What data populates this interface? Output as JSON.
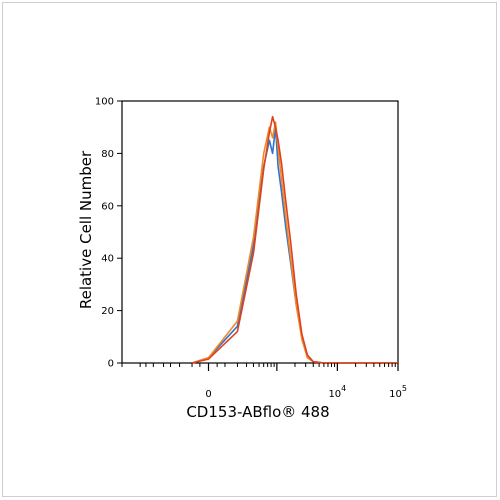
{
  "chart_data": {
    "type": "line",
    "title": "",
    "xlabel": "CD153-ABflo® 488",
    "ylabel": "Relative Cell Number",
    "xscale": "biexponential",
    "ylim": [
      0,
      100
    ],
    "y_ticks": [
      0,
      20,
      40,
      60,
      80,
      100
    ],
    "x_tick_labels": [
      {
        "base": "0",
        "exp": ""
      },
      {
        "base": "10",
        "exp": "4"
      },
      {
        "base": "10",
        "exp": "5"
      }
    ],
    "grid": false,
    "legend": "none",
    "series": [
      {
        "color": "#2f74d0",
        "points": [
          [
            -100,
            0
          ],
          [
            0,
            2
          ],
          [
            200,
            14
          ],
          [
            400,
            45
          ],
          [
            600,
            75
          ],
          [
            750,
            85
          ],
          [
            850,
            80
          ],
          [
            950,
            90
          ],
          [
            1050,
            75
          ],
          [
            1200,
            65
          ],
          [
            1400,
            52
          ],
          [
            1700,
            38
          ],
          [
            2100,
            22
          ],
          [
            2600,
            10
          ],
          [
            3200,
            3
          ],
          [
            4000,
            0.5
          ],
          [
            6000,
            0
          ],
          [
            100000,
            0
          ]
        ]
      },
      {
        "color": "#f08a24",
        "points": [
          [
            -100,
            0
          ],
          [
            0,
            2
          ],
          [
            200,
            16
          ],
          [
            400,
            48
          ],
          [
            600,
            80
          ],
          [
            750,
            90
          ],
          [
            850,
            86
          ],
          [
            950,
            92
          ],
          [
            1050,
            82
          ],
          [
            1200,
            70
          ],
          [
            1400,
            56
          ],
          [
            1700,
            40
          ],
          [
            2100,
            22
          ],
          [
            2600,
            9
          ],
          [
            3200,
            2
          ],
          [
            4000,
            0.5
          ],
          [
            6000,
            0
          ],
          [
            100000,
            0
          ]
        ]
      },
      {
        "color": "#e0401e",
        "points": [
          [
            -100,
            0
          ],
          [
            0,
            1.5
          ],
          [
            200,
            12
          ],
          [
            400,
            42
          ],
          [
            600,
            74
          ],
          [
            750,
            88
          ],
          [
            850,
            94
          ],
          [
            950,
            90
          ],
          [
            1050,
            85
          ],
          [
            1200,
            76
          ],
          [
            1400,
            62
          ],
          [
            1700,
            46
          ],
          [
            2100,
            26
          ],
          [
            2600,
            11
          ],
          [
            3200,
            3
          ],
          [
            4000,
            0.5
          ],
          [
            6000,
            0
          ],
          [
            100000,
            0
          ]
        ]
      }
    ]
  }
}
